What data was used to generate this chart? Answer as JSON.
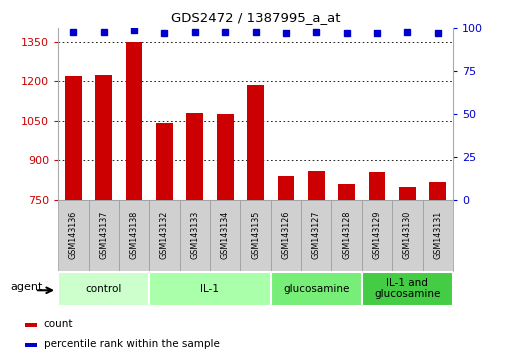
{
  "title": "GDS2472 / 1387995_a_at",
  "samples": [
    "GSM143136",
    "GSM143137",
    "GSM143138",
    "GSM143132",
    "GSM143133",
    "GSM143134",
    "GSM143135",
    "GSM143126",
    "GSM143127",
    "GSM143128",
    "GSM143129",
    "GSM143130",
    "GSM143131"
  ],
  "counts": [
    1218,
    1222,
    1350,
    1040,
    1080,
    1075,
    1185,
    840,
    860,
    810,
    855,
    800,
    820
  ],
  "percentiles": [
    98,
    98,
    99,
    97,
    98,
    98,
    98,
    97,
    98,
    97,
    97,
    98,
    97
  ],
  "bar_color": "#cc0000",
  "dot_color": "#0000cc",
  "ylim_left": [
    750,
    1400
  ],
  "ylim_right": [
    0,
    100
  ],
  "yticks_left": [
    750,
    900,
    1050,
    1200,
    1350
  ],
  "yticks_right": [
    0,
    25,
    50,
    75,
    100
  ],
  "groups": [
    {
      "label": "control",
      "indices": [
        0,
        1,
        2
      ],
      "color": "#ccffcc",
      "dark_color": "#aaddaa"
    },
    {
      "label": "IL-1",
      "indices": [
        3,
        4,
        5,
        6
      ],
      "color": "#aaffaa",
      "dark_color": "#88cc88"
    },
    {
      "label": "glucosamine",
      "indices": [
        7,
        8,
        9
      ],
      "color": "#88ee88",
      "dark_color": "#66bb66"
    },
    {
      "label": "IL-1 and\nglucosamine",
      "indices": [
        10,
        11,
        12
      ],
      "color": "#44cc44",
      "dark_color": "#33aa33"
    }
  ],
  "agent_label": "agent",
  "legend_count_label": "count",
  "legend_percentile_label": "percentile rank within the sample",
  "bar_width": 0.55,
  "grid_color": "#000000",
  "bg_color": "#ffffff",
  "tick_label_color_left": "#cc0000",
  "tick_label_color_right": "#0000cc",
  "sample_box_color": "#d0d0d0",
  "sample_box_border": "#999999"
}
